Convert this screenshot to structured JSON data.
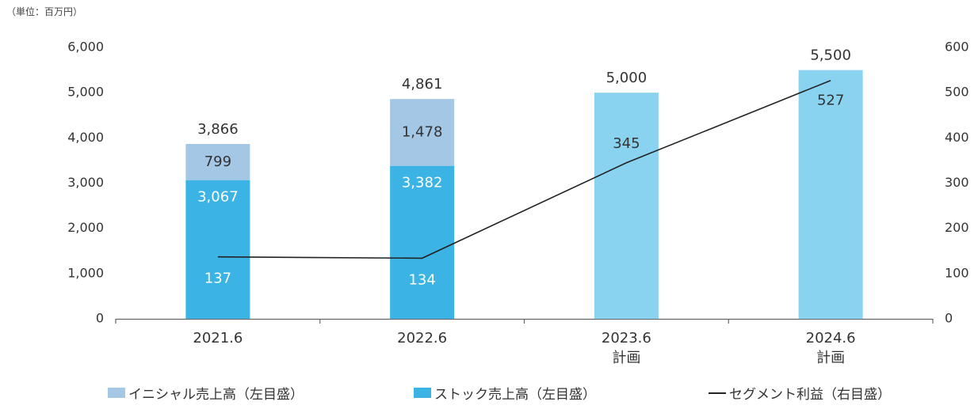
{
  "unit_label": "（単位：百万円）",
  "chart_data": {
    "type": "bar",
    "categories": [
      "2021.6",
      "2022.6",
      "2023.6",
      "2024.6"
    ],
    "category_sublabels": [
      "",
      "",
      "計画",
      "計画"
    ],
    "series": [
      {
        "name": "ストック売上高（左目盛）",
        "kind": "bar",
        "axis": "left",
        "color": "#3BB4E5",
        "values": [
          3067,
          3382,
          null,
          null
        ]
      },
      {
        "name": "イニシャル売上高（左目盛）",
        "kind": "bar",
        "axis": "left",
        "color": "#A3C7E5",
        "values": [
          799,
          1478,
          null,
          null
        ]
      },
      {
        "name": "",
        "kind": "bar",
        "axis": "left",
        "color": "#89D3F0",
        "values": [
          null,
          null,
          5000,
          5500
        ]
      },
      {
        "name": "セグメント利益（右目盛）",
        "kind": "line",
        "axis": "right",
        "color": "#222222",
        "values": [
          137,
          134,
          345,
          527
        ]
      }
    ],
    "totals": [
      3866,
      4861,
      5000,
      5500
    ],
    "total_labels": [
      "3,866",
      "4,861",
      "5,000",
      "5,500"
    ],
    "stock_labels": [
      "3,067",
      "3,382",
      "",
      ""
    ],
    "initial_labels": [
      "799",
      "1,478",
      "",
      ""
    ],
    "profit_labels": [
      "137",
      "134",
      "345",
      "527"
    ],
    "y_left": {
      "min": 0,
      "max": 6000,
      "ticks": [
        0,
        1000,
        2000,
        3000,
        4000,
        5000,
        6000
      ],
      "tick_labels": [
        "0",
        "1,000",
        "2,000",
        "3,000",
        "4,000",
        "5,000",
        "6,000"
      ]
    },
    "y_right": {
      "min": 0,
      "max": 600,
      "ticks": [
        0,
        100,
        200,
        300,
        400,
        500,
        600
      ],
      "tick_labels": [
        "0",
        "100",
        "200",
        "300",
        "400",
        "500",
        "600"
      ]
    },
    "grid": false,
    "legend_position": "bottom"
  },
  "legend": {
    "initial": "イニシャル売上高（左目盛）",
    "stock": "ストック売上高（左目盛）",
    "profit": "セグメント利益（右目盛）"
  },
  "colors": {
    "initial": "#A3C7E5",
    "stock": "#3BB4E5",
    "plan": "#89D3F0",
    "line": "#222222"
  }
}
